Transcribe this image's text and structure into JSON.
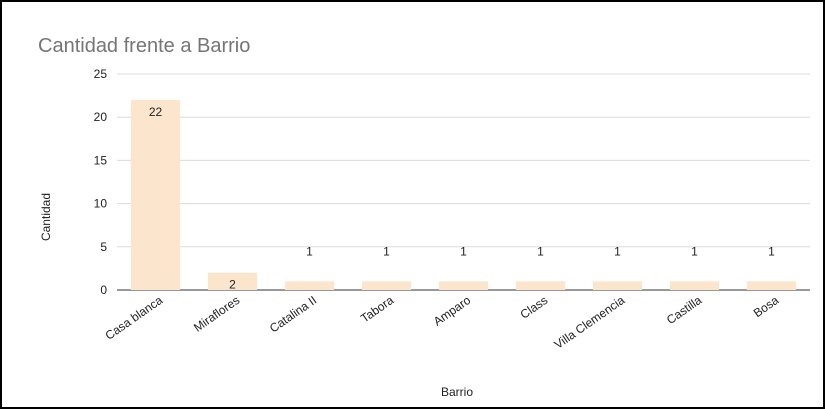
{
  "chart_data": {
    "type": "bar",
    "title": "Cantidad frente a Barrio",
    "xlabel": "Barrio",
    "ylabel": "Cantidad",
    "ylim": [
      0,
      25
    ],
    "yticks": [
      0,
      5,
      10,
      15,
      20,
      25
    ],
    "grid": true,
    "legend": "none",
    "bar_color": "#fce5cd",
    "categories": [
      "Casa blanca",
      "Miraflores",
      "Catalina II",
      "Tabora",
      "Amparo",
      "Class",
      "Villa Clemencia",
      "Castilla",
      "Bosa"
    ],
    "values": [
      22,
      2,
      1,
      1,
      1,
      1,
      1,
      1,
      1
    ],
    "data_labels": [
      "22",
      "2",
      "1",
      "1",
      "1",
      "1",
      "1",
      "1",
      "1"
    ]
  }
}
